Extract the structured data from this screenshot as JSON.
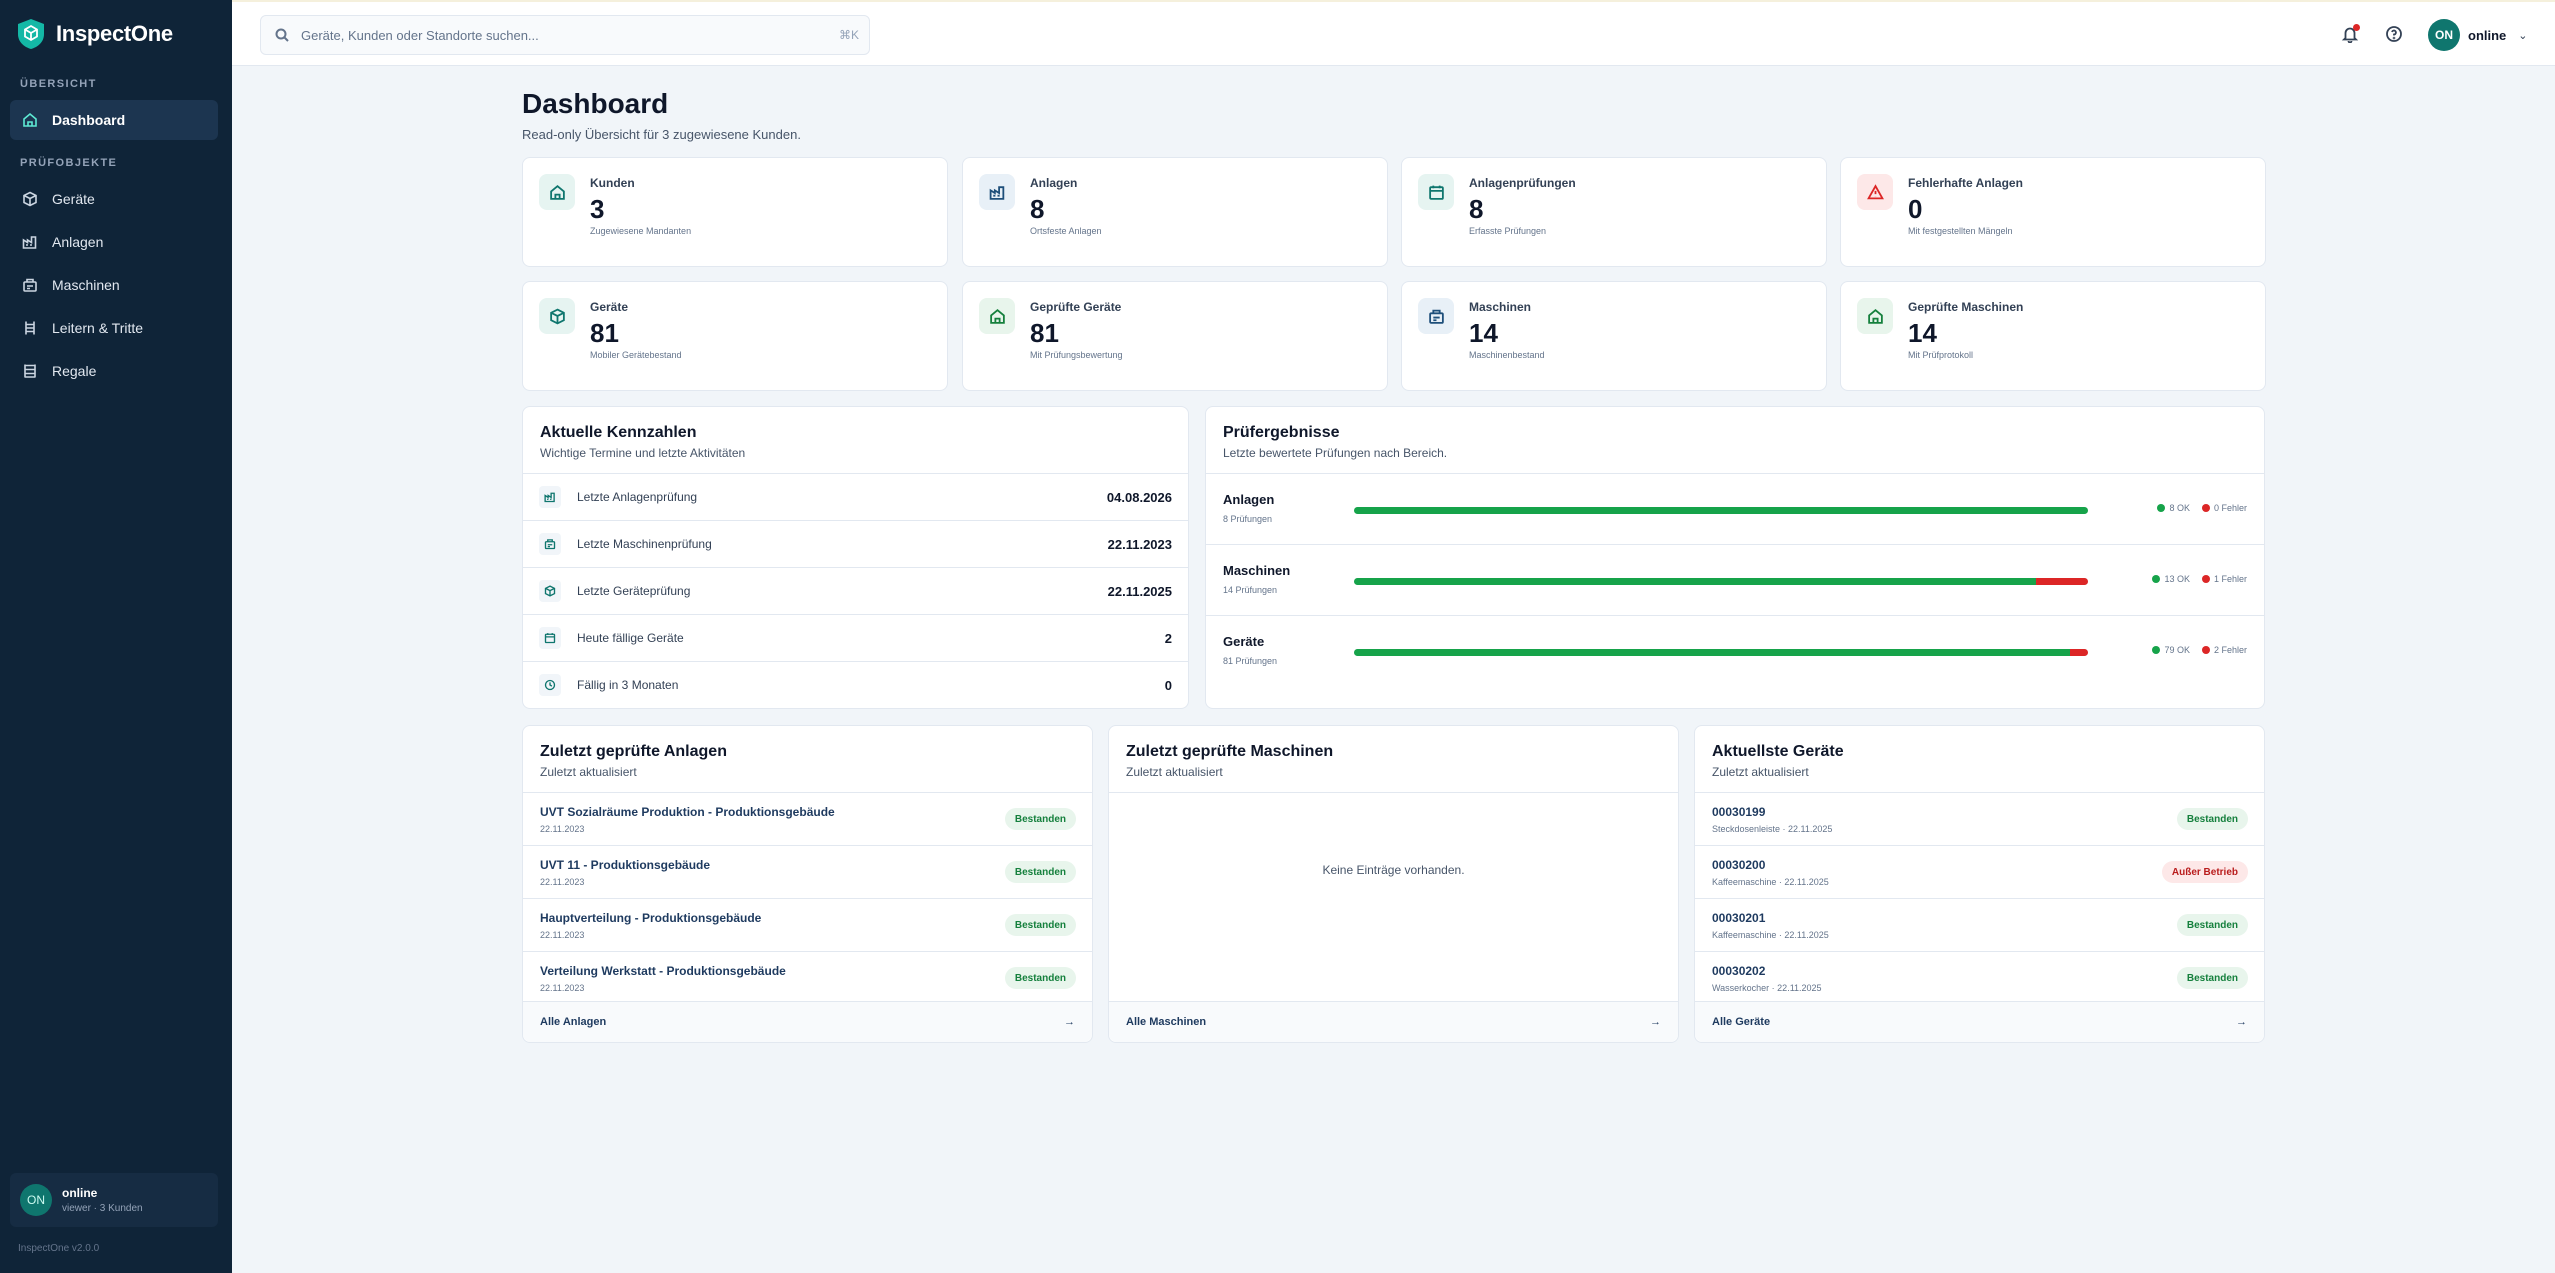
{
  "app": {
    "name": "InspectOne",
    "version": "InspectOne v2.0.0"
  },
  "sidebar": {
    "section_overview": "ÜBERSICHT",
    "section_objects": "PRÜFOBJEKTE",
    "items": [
      {
        "label": "Dashboard",
        "icon": "home-icon",
        "active": true
      },
      {
        "label": "Geräte",
        "icon": "box-icon"
      },
      {
        "label": "Anlagen",
        "icon": "factory-icon"
      },
      {
        "label": "Maschinen",
        "icon": "machine-icon"
      },
      {
        "label": "Leitern & Tritte",
        "icon": "ladder-icon"
      },
      {
        "label": "Regale",
        "icon": "shelf-icon"
      }
    ],
    "user": {
      "initials": "ON",
      "name": "online",
      "role": "viewer · 3 Kunden"
    }
  },
  "topbar": {
    "search_placeholder": "Geräte, Kunden oder Standorte suchen...",
    "shortcut": "⌘K",
    "user_initials": "ON",
    "user_name": "online"
  },
  "page": {
    "title": "Dashboard",
    "subtitle": "Read-only Übersicht für 3 zugewiesene Kunden."
  },
  "stats": [
    {
      "label": "Kunden",
      "value": "3",
      "desc": "Zugewiesene Mandanten",
      "icon": "home-icon",
      "tone": "teal"
    },
    {
      "label": "Anlagen",
      "value": "8",
      "desc": "Ortsfeste Anlagen",
      "icon": "factory-icon",
      "tone": "blue"
    },
    {
      "label": "Anlagenprüfungen",
      "value": "8",
      "desc": "Erfasste Prüfungen",
      "icon": "calendar-icon",
      "tone": "teal"
    },
    {
      "label": "Fehlerhafte Anlagen",
      "value": "0",
      "desc": "Mit festgestellten Mängeln",
      "icon": "alert-icon",
      "tone": "red"
    },
    {
      "label": "Geräte",
      "value": "81",
      "desc": "Mobiler Gerätebestand",
      "icon": "box-icon",
      "tone": "teal"
    },
    {
      "label": "Geprüfte Geräte",
      "value": "81",
      "desc": "Mit Prüfungsbewertung",
      "icon": "home-icon",
      "tone": "green"
    },
    {
      "label": "Maschinen",
      "value": "14",
      "desc": "Maschinenbestand",
      "icon": "machine-icon",
      "tone": "blue"
    },
    {
      "label": "Geprüfte Maschinen",
      "value": "14",
      "desc": "Mit Prüfprotokoll",
      "icon": "home-icon",
      "tone": "green"
    }
  ],
  "kennzahlen": {
    "title": "Aktuelle Kennzahlen",
    "subtitle": "Wichtige Termine und letzte Aktivitäten",
    "rows": [
      {
        "label": "Letzte Anlagenprüfung",
        "value": "04.08.2026",
        "icon": "factory-icon"
      },
      {
        "label": "Letzte Maschinenprüfung",
        "value": "22.11.2023",
        "icon": "machine-icon"
      },
      {
        "label": "Letzte Geräteprüfung",
        "value": "22.11.2025",
        "icon": "box-icon"
      },
      {
        "label": "Heute fällige Geräte",
        "value": "2",
        "icon": "calendar-icon"
      },
      {
        "label": "Fällig in 3 Monaten",
        "value": "0",
        "icon": "clock-icon"
      }
    ]
  },
  "ergebnisse": {
    "title": "Prüfergebnisse",
    "subtitle": "Letzte bewertete Prüfungen nach Bereich.",
    "rows": [
      {
        "name": "Anlagen",
        "count": "8 Prüfungen",
        "ok": 8,
        "fail": 0,
        "ok_label": "8 OK",
        "fail_label": "0 Fehler"
      },
      {
        "name": "Maschinen",
        "count": "14 Prüfungen",
        "ok": 13,
        "fail": 1,
        "ok_label": "13 OK",
        "fail_label": "1 Fehler"
      },
      {
        "name": "Geräte",
        "count": "81 Prüfungen",
        "ok": 79,
        "fail": 2,
        "ok_label": "79 OK",
        "fail_label": "2 Fehler"
      }
    ]
  },
  "anlagen_card": {
    "title": "Zuletzt geprüfte Anlagen",
    "subtitle": "Zuletzt aktualisiert",
    "items": [
      {
        "title": "UVT Sozialräume Produktion - Produktionsgebäude",
        "sub": "22.11.2023",
        "status": "Bestanden",
        "tone": "ok"
      },
      {
        "title": "UVT 11 - Produktionsgebäude",
        "sub": "22.11.2023",
        "status": "Bestanden",
        "tone": "ok"
      },
      {
        "title": "Hauptverteilung - Produktionsgebäude",
        "sub": "22.11.2023",
        "status": "Bestanden",
        "tone": "ok"
      },
      {
        "title": "Verteilung Werkstatt - Produktionsgebäude",
        "sub": "22.11.2023",
        "status": "Bestanden",
        "tone": "ok"
      }
    ],
    "footer": "Alle Anlagen",
    "footer_arrow": "→"
  },
  "maschinen_card": {
    "title": "Zuletzt geprüfte Maschinen",
    "subtitle": "Zuletzt aktualisiert",
    "empty": "Keine Einträge vorhanden.",
    "footer": "Alle Maschinen",
    "footer_arrow": "→"
  },
  "geraete_card": {
    "title": "Aktuellste Geräte",
    "subtitle": "Zuletzt aktualisiert",
    "items": [
      {
        "title": "00030199",
        "sub": "Steckdosenleiste · 22.11.2025",
        "status": "Bestanden",
        "tone": "ok"
      },
      {
        "title": "00030200",
        "sub": "Kaffeemaschine · 22.11.2025",
        "status": "Außer Betrieb",
        "tone": "warn"
      },
      {
        "title": "00030201",
        "sub": "Kaffeemaschine · 22.11.2025",
        "status": "Bestanden",
        "tone": "ok"
      },
      {
        "title": "00030202",
        "sub": "Wasserkocher · 22.11.2025",
        "status": "Bestanden",
        "tone": "ok"
      }
    ],
    "footer": "Alle Geräte",
    "footer_arrow": "→"
  },
  "colors": {
    "sidebar": "#0f2438",
    "accent": "#0f766e",
    "ok": "#16a34a",
    "fail": "#dc2626"
  }
}
